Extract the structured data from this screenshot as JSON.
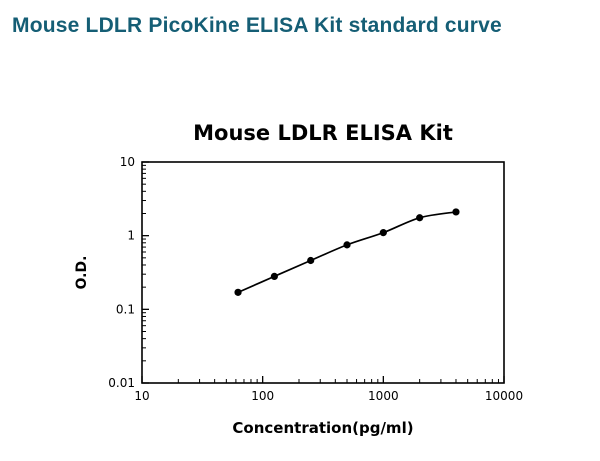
{
  "page": {
    "title": "Mouse LDLR PicoKine ELISA Kit standard curve",
    "title_color": "#155e75"
  },
  "chart_data": {
    "type": "line",
    "title": "Mouse LDLR ELISA Kit",
    "xlabel": "Concentration(pg/ml)",
    "ylabel": "O.D.",
    "x_scale": "log",
    "y_scale": "log",
    "xlim": [
      10,
      10000
    ],
    "ylim": [
      0.01,
      10
    ],
    "x_tick_labels": [
      "10",
      "100",
      "1000",
      "10000"
    ],
    "y_tick_labels": [
      "0.01",
      "0.1",
      "1",
      "10"
    ],
    "x": [
      62.5,
      125,
      250,
      500,
      1000,
      2000,
      4000
    ],
    "y": [
      0.17,
      0.28,
      0.46,
      0.75,
      1.1,
      1.75,
      2.1
    ],
    "marker": "circle",
    "line_color": "#000000",
    "grid": false,
    "legend": "none"
  }
}
